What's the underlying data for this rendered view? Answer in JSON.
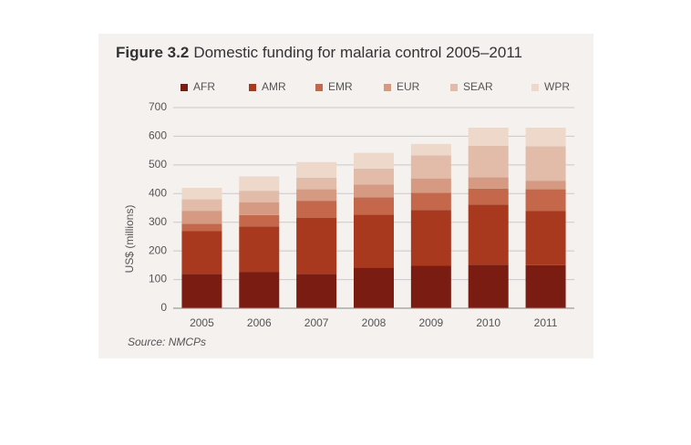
{
  "chart_data": {
    "type": "stacked_bar",
    "figure_label": "Figure 3.2",
    "title": "Domestic funding for malaria control 2005–2011",
    "y_label": "US$ (millions)",
    "source": "Source: NMCPs",
    "categories": [
      "2005",
      "2006",
      "2007",
      "2008",
      "2009",
      "2010",
      "2011"
    ],
    "series": [
      {
        "name": "AFR",
        "color": "#7a1c12",
        "values": [
          120,
          127,
          120,
          142,
          148,
          152,
          150
        ]
      },
      {
        "name": "AMR",
        "color": "#a8391f",
        "values": [
          150,
          158,
          195,
          185,
          195,
          210,
          190
        ]
      },
      {
        "name": "EMR",
        "color": "#c4674a",
        "values": [
          25,
          40,
          60,
          60,
          60,
          55,
          75
        ]
      },
      {
        "name": "EUR",
        "color": "#d69a82",
        "values": [
          45,
          45,
          40,
          45,
          50,
          40,
          30
        ]
      },
      {
        "name": "SEAR",
        "color": "#e2bca9",
        "values": [
          40,
          40,
          40,
          55,
          80,
          110,
          120
        ]
      },
      {
        "name": "WPR",
        "color": "#eed8ca",
        "values": [
          40,
          50,
          55,
          55,
          40,
          63,
          65
        ]
      }
    ],
    "ylim": [
      0,
      700
    ],
    "yticks": [
      0,
      100,
      200,
      300,
      400,
      500,
      600,
      700
    ],
    "grid": true
  }
}
